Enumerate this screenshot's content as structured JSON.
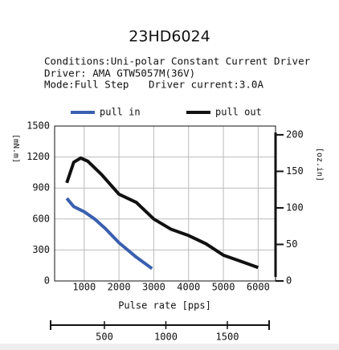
{
  "chart_data": {
    "type": "line",
    "title": "23HD6024",
    "conditions": [
      "Conditions:Uni-polar Constant Current Driver",
      "Driver: AMA GTW5057M(36V)",
      "Mode:Full Step",
      "Driver current:3.0A"
    ],
    "xlabel": "Pulse rate [pps]",
    "ylabel": "[mN.m]",
    "y2label": "[oz.in]",
    "series": [
      {
        "name": "pull in",
        "color": "#3a5fb0",
        "x": [
          500,
          700,
          1000,
          1300,
          1600,
          2000,
          2500,
          2950
        ],
        "values": [
          800,
          720,
          670,
          600,
          510,
          370,
          230,
          120
        ]
      },
      {
        "name": "pull out",
        "color": "#111111",
        "x": [
          500,
          700,
          900,
          1100,
          1500,
          2000,
          2500,
          3000,
          3500,
          4000,
          4500,
          5000,
          5500,
          6000
        ],
        "values": [
          950,
          1150,
          1190,
          1160,
          1030,
          840,
          760,
          600,
          500,
          440,
          360,
          250,
          190,
          130
        ]
      }
    ],
    "xlim": [
      150,
      6500
    ],
    "xticks": [
      1000,
      2000,
      3000,
      4000,
      5000,
      6000
    ],
    "ylim": [
      0,
      1500
    ],
    "yticks": [
      0,
      300,
      600,
      900,
      1200,
      1500
    ],
    "y2lim": [
      0,
      212
    ],
    "y2ticks": [
      0,
      50,
      100,
      150,
      200
    ],
    "x2lim": [
      95,
      1892
    ],
    "x2ticks": [
      500,
      1000,
      1500
    ],
    "grid": true
  }
}
